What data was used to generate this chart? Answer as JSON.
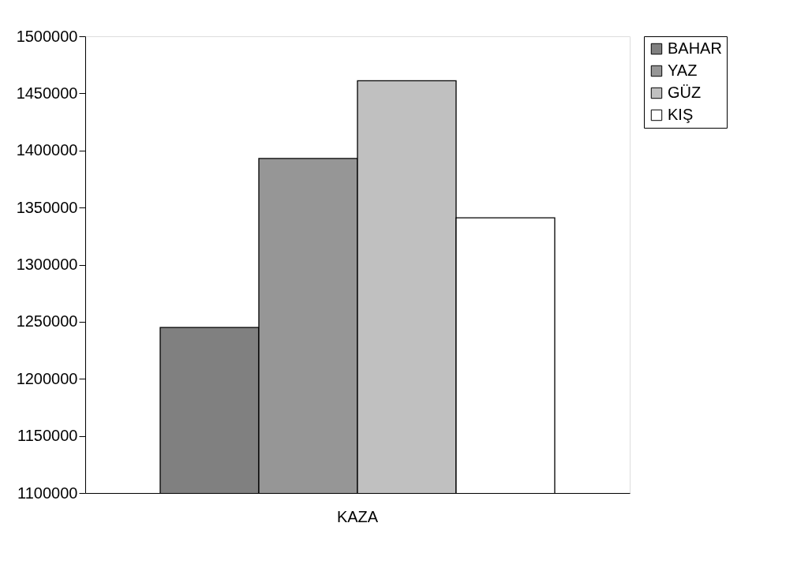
{
  "chart_data": {
    "type": "bar",
    "categories": [
      "KAZA"
    ],
    "series": [
      {
        "name": "BAHAR",
        "color": "#808080",
        "values": [
          1245000
        ]
      },
      {
        "name": "YAZ",
        "color": "#969696",
        "values": [
          1393000
        ]
      },
      {
        "name": "GÜZ",
        "color": "#c0c0c0",
        "values": [
          1461000
        ]
      },
      {
        "name": "KIŞ",
        "color": "#ffffff",
        "values": [
          1341000
        ]
      }
    ],
    "ylim": [
      1100000,
      1500000
    ],
    "yticks": [
      1100000,
      1150000,
      1200000,
      1250000,
      1300000,
      1350000,
      1400000,
      1450000,
      1500000
    ],
    "grid": false,
    "legend": "right"
  }
}
